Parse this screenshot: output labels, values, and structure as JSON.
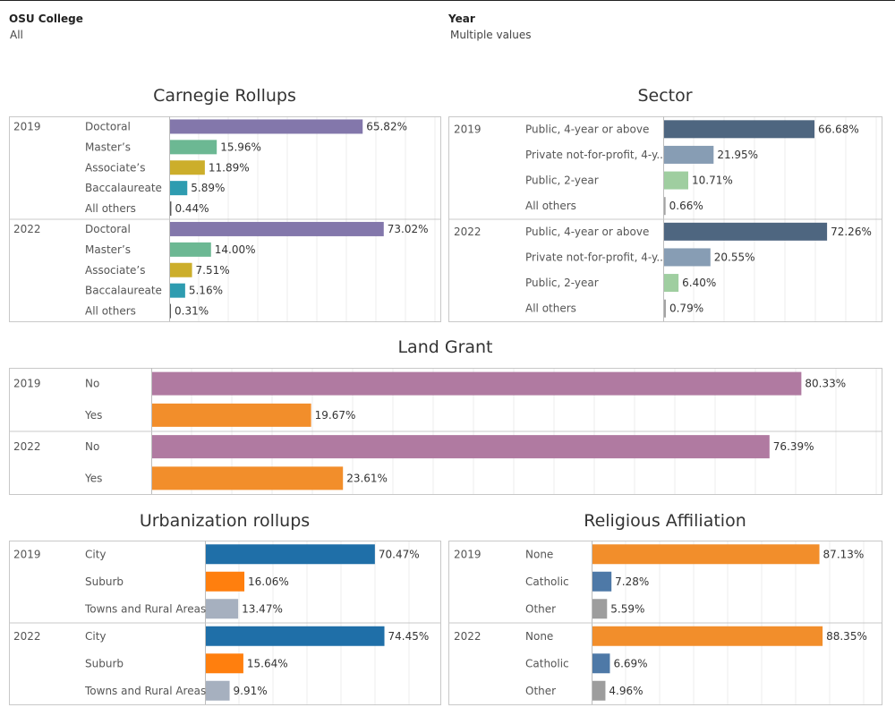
{
  "filters": {
    "college": {
      "label": "OSU College",
      "value": "All"
    },
    "year": {
      "label": "Year",
      "value": "Multiple values"
    }
  },
  "chart_data": [
    {
      "id": "carnegie",
      "type": "bar",
      "orientation": "horizontal",
      "title": "Carnegie Rollups",
      "xlim": [
        0,
        100
      ],
      "groups": [
        {
          "year": "2019",
          "items": [
            {
              "label": "Doctoral",
              "value": 65.82,
              "display": "65.82%",
              "color": "#8377ab"
            },
            {
              "label": "Master’s",
              "value": 15.96,
              "display": "15.96%",
              "color": "#6cb893"
            },
            {
              "label": "Associate’s",
              "value": 11.89,
              "display": "11.89%",
              "color": "#ccae2b"
            },
            {
              "label": "Baccalaureate",
              "value": 5.89,
              "display": "5.89%",
              "color": "#2e9cb0"
            },
            {
              "label": "All others",
              "value": 0.44,
              "display": "0.44%",
              "color": "#5a5a5a"
            }
          ]
        },
        {
          "year": "2022",
          "items": [
            {
              "label": "Doctoral",
              "value": 73.02,
              "display": "73.02%",
              "color": "#8377ab"
            },
            {
              "label": "Master’s",
              "value": 14.0,
              "display": "14.00%",
              "color": "#6cb893"
            },
            {
              "label": "Associate’s",
              "value": 7.51,
              "display": "7.51%",
              "color": "#ccae2b"
            },
            {
              "label": "Baccalaureate",
              "value": 5.16,
              "display": "5.16%",
              "color": "#2e9cb0"
            },
            {
              "label": "All others",
              "value": 0.31,
              "display": "0.31%",
              "color": "#5a5a5a"
            }
          ]
        }
      ]
    },
    {
      "id": "sector",
      "type": "bar",
      "orientation": "horizontal",
      "title": "Sector",
      "xlim": [
        0,
        100
      ],
      "groups": [
        {
          "year": "2019",
          "items": [
            {
              "label": "Public, 4-year or above",
              "value": 66.68,
              "display": "66.68%",
              "color": "#4e6680"
            },
            {
              "label": "Private not-for-profit, 4-y..",
              "value": 21.95,
              "display": "21.95%",
              "color": "#879db4"
            },
            {
              "label": "Public, 2-year",
              "value": 10.71,
              "display": "10.71%",
              "color": "#9fcea0"
            },
            {
              "label": "All others",
              "value": 0.66,
              "display": "0.66%",
              "color": "#a3a3a3"
            }
          ]
        },
        {
          "year": "2022",
          "items": [
            {
              "label": "Public, 4-year or above",
              "value": 72.26,
              "display": "72.26%",
              "color": "#4e6680"
            },
            {
              "label": "Private not-for-profit, 4-y..",
              "value": 20.55,
              "display": "20.55%",
              "color": "#879db4"
            },
            {
              "label": "Public, 2-year",
              "value": 6.4,
              "display": "6.40%",
              "color": "#9fcea0"
            },
            {
              "label": "All others",
              "value": 0.79,
              "display": "0.79%",
              "color": "#a3a3a3"
            }
          ]
        }
      ]
    },
    {
      "id": "landgrant",
      "type": "bar",
      "orientation": "horizontal",
      "title": "Land Grant",
      "xlim": [
        0,
        100
      ],
      "groups": [
        {
          "year": "2019",
          "items": [
            {
              "label": "No",
              "value": 80.33,
              "display": "80.33%",
              "color": "#b07aa1"
            },
            {
              "label": "Yes",
              "value": 19.67,
              "display": "19.67%",
              "color": "#f28e2b"
            }
          ]
        },
        {
          "year": "2022",
          "items": [
            {
              "label": "No",
              "value": 76.39,
              "display": "76.39%",
              "color": "#b07aa1"
            },
            {
              "label": "Yes",
              "value": 23.61,
              "display": "23.61%",
              "color": "#f28e2b"
            }
          ]
        }
      ]
    },
    {
      "id": "urbanization",
      "type": "bar",
      "orientation": "horizontal",
      "title": "Urbanization rollups",
      "xlim": [
        0,
        100
      ],
      "groups": [
        {
          "year": "2019",
          "items": [
            {
              "label": "City",
              "value": 70.47,
              "display": "70.47%",
              "color": "#1f6fa8"
            },
            {
              "label": "Suburb",
              "value": 16.06,
              "display": "16.06%",
              "color": "#ff7f0e"
            },
            {
              "label": "Towns and Rural Areas",
              "value": 13.47,
              "display": "13.47%",
              "color": "#a6b0bf"
            }
          ]
        },
        {
          "year": "2022",
          "items": [
            {
              "label": "City",
              "value": 74.45,
              "display": "74.45%",
              "color": "#1f6fa8"
            },
            {
              "label": "Suburb",
              "value": 15.64,
              "display": "15.64%",
              "color": "#ff7f0e"
            },
            {
              "label": "Towns and Rural Areas",
              "value": 9.91,
              "display": "9.91%",
              "color": "#a6b0bf"
            }
          ]
        }
      ]
    },
    {
      "id": "religious",
      "type": "bar",
      "orientation": "horizontal",
      "title": "Religious Affiliation",
      "xlim": [
        0,
        100
      ],
      "groups": [
        {
          "year": "2019",
          "items": [
            {
              "label": "None",
              "value": 87.13,
              "display": "87.13%",
              "color": "#f28e2b"
            },
            {
              "label": "Catholic",
              "value": 7.28,
              "display": "7.28%",
              "color": "#4e79a7"
            },
            {
              "label": "Other",
              "value": 5.59,
              "display": "5.59%",
              "color": "#9d9d9d"
            }
          ]
        },
        {
          "year": "2022",
          "items": [
            {
              "label": "None",
              "value": 88.35,
              "display": "88.35%",
              "color": "#f28e2b"
            },
            {
              "label": "Catholic",
              "value": 6.69,
              "display": "6.69%",
              "color": "#4e79a7"
            },
            {
              "label": "Other",
              "value": 4.96,
              "display": "4.96%",
              "color": "#9d9d9d"
            }
          ]
        }
      ]
    }
  ]
}
